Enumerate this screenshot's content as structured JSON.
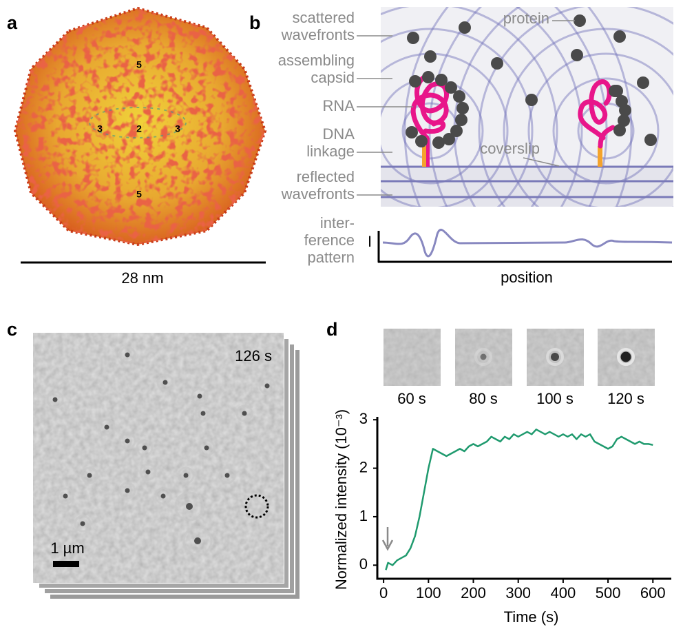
{
  "panel_a": {
    "label": "a",
    "symmetry_labels": [
      "5",
      "3",
      "2",
      "3",
      "5"
    ],
    "scale_bar": "28 nm"
  },
  "panel_b": {
    "label": "b",
    "labels": [
      [
        "scattered",
        "wavefronts"
      ],
      [
        "assembling",
        "capsid"
      ],
      [
        "RNA"
      ],
      [
        "DNA",
        "linkage"
      ],
      [
        "reflected",
        "wavefronts"
      ],
      [
        "inter-",
        "ference",
        "pattern"
      ]
    ],
    "protein": "protein",
    "coverslip": "coverslip",
    "intensity_axis": "I",
    "position_axis": "position"
  },
  "panel_c": {
    "label": "c",
    "time": "126 s",
    "scale_bar": "1 µm"
  },
  "panel_d": {
    "label": "d",
    "thumbnails": [
      "60 s",
      "80 s",
      "100 s",
      "120 s"
    ]
  },
  "chart_data": {
    "type": "line",
    "x_label": "Time (s)",
    "y_label": "Normalized intensity (10⁻³)",
    "x": [
      5,
      10,
      20,
      30,
      40,
      50,
      60,
      70,
      80,
      90,
      100,
      110,
      120,
      130,
      140,
      150,
      160,
      170,
      180,
      190,
      200,
      210,
      220,
      230,
      240,
      250,
      260,
      270,
      280,
      290,
      300,
      310,
      320,
      330,
      340,
      350,
      360,
      370,
      380,
      390,
      400,
      410,
      420,
      430,
      440,
      450,
      460,
      470,
      480,
      490,
      500,
      510,
      520,
      530,
      540,
      550,
      560,
      570,
      580,
      590,
      600
    ],
    "values": [
      -0.1,
      0.05,
      0,
      0.1,
      0.15,
      0.2,
      0.35,
      0.6,
      1.0,
      1.5,
      2.0,
      2.4,
      2.35,
      2.3,
      2.25,
      2.3,
      2.35,
      2.4,
      2.35,
      2.45,
      2.5,
      2.45,
      2.5,
      2.55,
      2.65,
      2.6,
      2.55,
      2.65,
      2.6,
      2.7,
      2.65,
      2.7,
      2.75,
      2.7,
      2.8,
      2.75,
      2.7,
      2.75,
      2.7,
      2.65,
      2.7,
      2.65,
      2.7,
      2.6,
      2.7,
      2.65,
      2.7,
      2.55,
      2.5,
      2.45,
      2.4,
      2.45,
      2.6,
      2.65,
      2.6,
      2.55,
      2.5,
      2.55,
      2.5,
      2.5,
      2.48
    ],
    "color": "#1f9a6e",
    "xlim": [
      -14,
      641
    ],
    "ylim": [
      -0.28,
      3.06
    ],
    "xticks": [
      0,
      100,
      200,
      300,
      400,
      500,
      600
    ],
    "yticks": [
      0,
      1,
      2,
      3
    ]
  }
}
